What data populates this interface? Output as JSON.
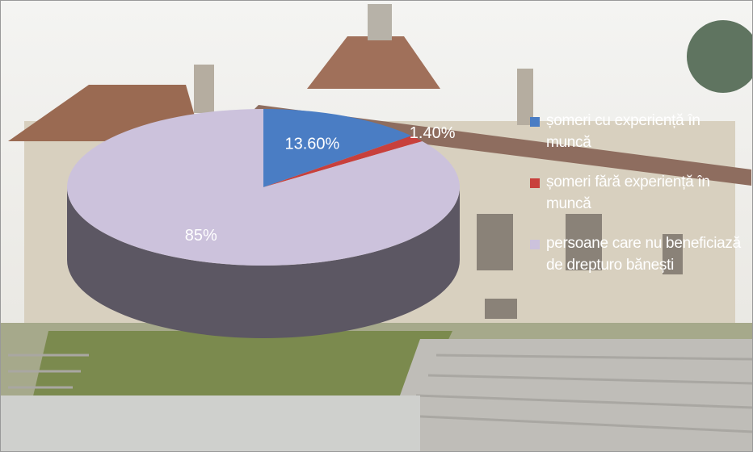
{
  "chart_data": {
    "type": "pie",
    "categories": [
      "șomeri cu experiență în muncă",
      "șomeri fără experiență în muncă",
      "persoane care nu beneficiază de drepturo bănești"
    ],
    "values": [
      13.6,
      1.4,
      85
    ],
    "value_labels": [
      "13.60%",
      "1.40%",
      "85%"
    ],
    "colors": [
      "#4a7dc4",
      "#c8403c",
      "#ccc2dc"
    ],
    "legend": "right"
  }
}
